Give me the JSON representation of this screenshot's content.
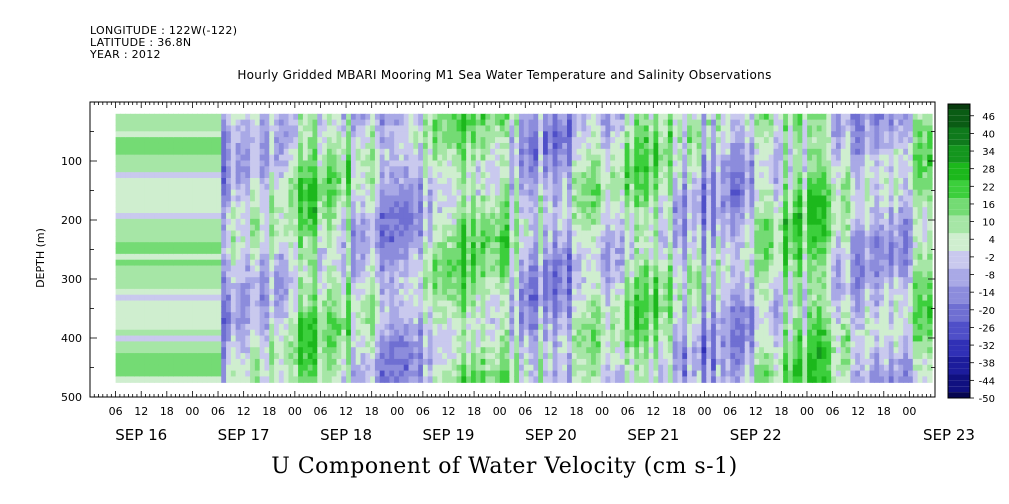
{
  "header": {
    "longitude": "LONGITUDE : 122W(-122)",
    "latitude": "LATITUDE : 36.8N",
    "year": "YEAR : 2012"
  },
  "chart_data": {
    "type": "heatmap",
    "title": "Hourly Gridded MBARI Mooring M1 Sea Water Temperature and Salinity Observations",
    "main_title": "U Component of Water Velocity (cm s-1)",
    "ylabel": "DEPTH (m)",
    "xlabel": "",
    "ylim": [
      500,
      0
    ],
    "yticks": [
      100,
      200,
      300,
      400,
      500
    ],
    "y_inverted": true,
    "x_start": "2012-09-15 06:00",
    "x_end": "2012-09-23 00:00",
    "x_hour_labels": [
      "06",
      "12",
      "18",
      "00",
      "06",
      "12",
      "18",
      "00",
      "06",
      "12",
      "18",
      "00",
      "06",
      "12",
      "18",
      "00",
      "06",
      "12",
      "18",
      "00",
      "06",
      "12",
      "18",
      "00",
      "06",
      "12",
      "18",
      "00",
      "06",
      "12",
      "18",
      "00"
    ],
    "x_day_labels": [
      "SEP 16",
      "SEP 17",
      "SEP 18",
      "SEP 19",
      "SEP 20",
      "SEP 21",
      "SEP 22",
      "SEP 23"
    ],
    "data_extent_depth": [
      20,
      475
    ],
    "colorbar_labels": [
      "46",
      "40",
      "34",
      "28",
      "22",
      "16",
      "10",
      "4",
      "-2",
      "-8",
      "-14",
      "-20",
      "-26",
      "-32",
      "-38",
      "-44",
      "-50"
    ],
    "colorbar_range": [
      -50,
      50
    ],
    "colors": {
      "positive": [
        "#cfeecf",
        "#a6e6a6",
        "#74db74",
        "#3ccf3c",
        "#1cb81c",
        "#14961e",
        "#0f7a1c",
        "#0a5c14",
        "#083c0e"
      ],
      "negative": [
        "#c9c9ee",
        "#a9a9e6",
        "#8c8cdc",
        "#6f6fd2",
        "#4f4fc8",
        "#3030b6",
        "#1c1c9c",
        "#101080",
        "#060650"
      ]
    },
    "note_text": ""
  }
}
